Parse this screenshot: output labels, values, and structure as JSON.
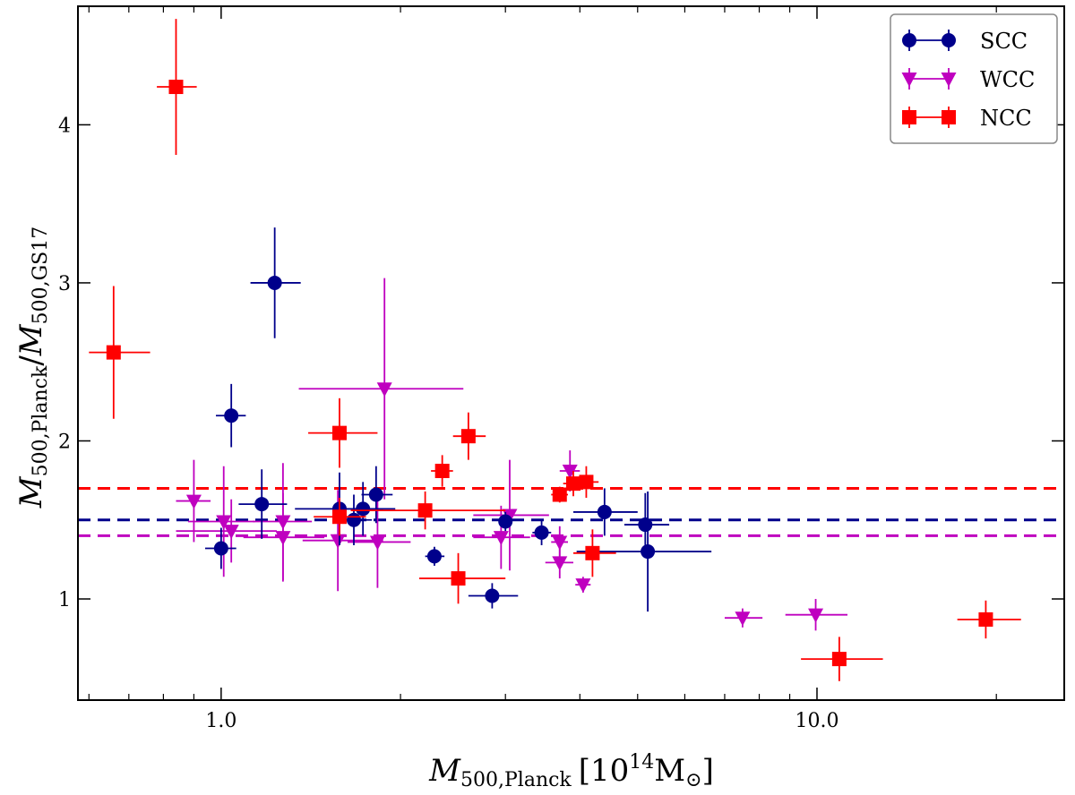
{
  "chart_data": {
    "type": "scatter",
    "xscale": "log",
    "xlim": [
      0.575,
      26
    ],
    "ylim": [
      0.36,
      4.75
    ],
    "xticks": [
      {
        "value": 1,
        "label": "1.0"
      },
      {
        "value": 10,
        "label": "10.0"
      }
    ],
    "yticks": [
      {
        "value": 1,
        "label": "1"
      },
      {
        "value": 2,
        "label": "2"
      },
      {
        "value": 3,
        "label": "3"
      },
      {
        "value": 4,
        "label": "4"
      }
    ],
    "xlabel": {
      "main": "M",
      "sub": "500,Planck",
      "unit_pre": "10",
      "unit_exp": "14",
      "unit_post": "M",
      "unit_sub": "⊙"
    },
    "ylabel": {
      "num_main": "M",
      "num_sub": "500,Planck",
      "slash": "/",
      "den_main": "M",
      "den_sub": "500,GS17"
    },
    "legend": {
      "position": "top-right"
    },
    "series": [
      {
        "name": "SCC",
        "color": "#00008b",
        "marker": "circle",
        "mean": 1.5,
        "points": [
          {
            "x": 1.0,
            "y": 1.32,
            "xerr": [
              0.06,
              0.06
            ],
            "yerr": [
              0.13,
              0.13
            ]
          },
          {
            "x": 1.04,
            "y": 2.16,
            "xerr": [
              0.06,
              0.06
            ],
            "yerr": [
              0.2,
              0.2
            ]
          },
          {
            "x": 1.17,
            "y": 1.6,
            "xerr": [
              0.1,
              0.12
            ],
            "yerr": [
              0.22,
              0.22
            ]
          },
          {
            "x": 1.23,
            "y": 3.0,
            "xerr": [
              0.11,
              0.13
            ],
            "yerr": [
              0.35,
              0.35
            ]
          },
          {
            "x": 1.58,
            "y": 1.57,
            "xerr": [
              0.25,
              0.38
            ],
            "yerr": [
              0.23,
              0.23
            ]
          },
          {
            "x": 1.67,
            "y": 1.5,
            "xerr": [
              0.1,
              0.12
            ],
            "yerr": [
              0.16,
              0.16
            ]
          },
          {
            "x": 1.73,
            "y": 1.57,
            "xerr": [
              0.12,
              0.14
            ],
            "yerr": [
              0.17,
              0.17
            ]
          },
          {
            "x": 1.82,
            "y": 1.66,
            "xerr": [
              0.1,
              0.12
            ],
            "yerr": [
              0.18,
              0.18
            ]
          },
          {
            "x": 2.28,
            "y": 1.27,
            "xerr": [
              0.08,
              0.09
            ],
            "yerr": [
              0.06,
              0.06
            ]
          },
          {
            "x": 2.85,
            "y": 1.02,
            "xerr": [
              0.25,
              0.3
            ],
            "yerr": [
              0.08,
              0.08
            ]
          },
          {
            "x": 3.0,
            "y": 1.49,
            "xerr": [
              0.07,
              0.07
            ],
            "yerr": [
              0.06,
              0.06
            ]
          },
          {
            "x": 3.45,
            "y": 1.42,
            "xerr": [
              0.12,
              0.13
            ],
            "yerr": [
              0.08,
              0.08
            ]
          },
          {
            "x": 4.4,
            "y": 1.55,
            "xerr": [
              0.5,
              0.6
            ],
            "yerr": [
              0.15,
              0.15
            ]
          },
          {
            "x": 5.15,
            "y": 1.47,
            "xerr": [
              0.4,
              0.5
            ],
            "yerr": [
              0.2,
              0.2
            ]
          },
          {
            "x": 5.2,
            "y": 1.3,
            "xerr": [
              1.25,
              1.45
            ],
            "yerr": [
              0.38,
              0.38
            ]
          }
        ]
      },
      {
        "name": "WCC",
        "color": "#bf00bf",
        "marker": "triangle-down",
        "mean": 1.4,
        "points": [
          {
            "x": 0.9,
            "y": 1.62,
            "xerr": [
              0.06,
              0.06
            ],
            "yerr": [
              0.26,
              0.26
            ]
          },
          {
            "x": 1.01,
            "y": 1.49,
            "xerr": [
              0.13,
              0.13
            ],
            "yerr": [
              0.35,
              0.35
            ]
          },
          {
            "x": 1.04,
            "y": 1.43,
            "xerr": [
              0.2,
              0.2
            ],
            "yerr": [
              0.2,
              0.2
            ]
          },
          {
            "x": 1.27,
            "y": 1.49,
            "xerr": [
              0.14,
              0.15
            ],
            "yerr": [
              0.37,
              0.37
            ]
          },
          {
            "x": 1.27,
            "y": 1.39,
            "xerr": [
              0.18,
              0.22
            ],
            "yerr": [
              0.28,
              0.28
            ]
          },
          {
            "x": 1.57,
            "y": 1.37,
            "xerr": [
              0.2,
              0.3
            ],
            "yerr": [
              0.32,
              0.32
            ]
          },
          {
            "x": 1.83,
            "y": 1.36,
            "xerr": [
              0.2,
              0.25
            ],
            "yerr": [
              0.29,
              0.29
            ]
          },
          {
            "x": 1.88,
            "y": 2.33,
            "xerr": [
              0.53,
              0.67
            ],
            "yerr": [
              0.7,
              0.7
            ]
          },
          {
            "x": 2.95,
            "y": 1.39,
            "xerr": [
              0.3,
              0.35
            ],
            "yerr": [
              0.2,
              0.2
            ]
          },
          {
            "x": 3.05,
            "y": 1.53,
            "xerr": [
              0.4,
              0.5
            ],
            "yerr": [
              0.35,
              0.35
            ]
          },
          {
            "x": 3.7,
            "y": 1.36,
            "xerr": [
              0.12,
              0.12
            ],
            "yerr": [
              0.1,
              0.1
            ]
          },
          {
            "x": 3.7,
            "y": 1.23,
            "xerr": [
              0.2,
              0.2
            ],
            "yerr": [
              0.1,
              0.1
            ]
          },
          {
            "x": 3.85,
            "y": 1.81,
            "xerr": [
              0.15,
              0.15
            ],
            "yerr": [
              0.13,
              0.13
            ]
          },
          {
            "x": 4.05,
            "y": 1.09,
            "xerr": [
              0.12,
              0.12
            ],
            "yerr": [
              0.05,
              0.05
            ]
          },
          {
            "x": 7.5,
            "y": 0.88,
            "xerr": [
              0.5,
              0.6
            ],
            "yerr": [
              0.06,
              0.06
            ]
          },
          {
            "x": 9.95,
            "y": 0.9,
            "xerr": [
              1.1,
              1.3
            ],
            "yerr": [
              0.1,
              0.1
            ]
          }
        ]
      },
      {
        "name": "NCC",
        "color": "#ff0000",
        "marker": "square",
        "mean": 1.7,
        "points": [
          {
            "x": 0.84,
            "y": 4.24,
            "xerr": [
              0.06,
              0.07
            ],
            "yerr": [
              0.43,
              0.43
            ]
          },
          {
            "x": 0.66,
            "y": 2.56,
            "xerr": [
              0.06,
              0.1
            ],
            "yerr": [
              0.42,
              0.42
            ]
          },
          {
            "x": 1.58,
            "y": 2.05,
            "xerr": [
              0.18,
              0.25
            ],
            "yerr": [
              0.22,
              0.22
            ]
          },
          {
            "x": 1.58,
            "y": 1.52,
            "xerr": [
              0.15,
              0.17
            ],
            "yerr": [
              0.12,
              0.12
            ]
          },
          {
            "x": 2.2,
            "y": 1.56,
            "xerr": [
              0.55,
              0.8
            ],
            "yerr": [
              0.12,
              0.12
            ]
          },
          {
            "x": 2.35,
            "y": 1.81,
            "xerr": [
              0.1,
              0.1
            ],
            "yerr": [
              0.1,
              0.1
            ]
          },
          {
            "x": 2.5,
            "y": 1.13,
            "xerr": [
              0.35,
              0.5
            ],
            "yerr": [
              0.16,
              0.16
            ]
          },
          {
            "x": 2.6,
            "y": 2.03,
            "xerr": [
              0.15,
              0.18
            ],
            "yerr": [
              0.15,
              0.15
            ]
          },
          {
            "x": 3.7,
            "y": 1.66,
            "xerr": [
              0.12,
              0.12
            ],
            "yerr": [
              0.05,
              0.05
            ]
          },
          {
            "x": 3.9,
            "y": 1.73,
            "xerr": [
              0.15,
              0.15
            ],
            "yerr": [
              0.08,
              0.08
            ]
          },
          {
            "x": 4.1,
            "y": 1.74,
            "xerr": [
              0.2,
              0.2
            ],
            "yerr": [
              0.1,
              0.1
            ]
          },
          {
            "x": 4.2,
            "y": 1.29,
            "xerr": [
              0.3,
              0.4
            ],
            "yerr": [
              0.15,
              0.15
            ]
          },
          {
            "x": 10.9,
            "y": 0.62,
            "xerr": [
              1.5,
              2.0
            ],
            "yerr": [
              0.14,
              0.14
            ]
          },
          {
            "x": 19.2,
            "y": 0.87,
            "xerr": [
              2.0,
              2.8
            ],
            "yerr": [
              0.12,
              0.12
            ]
          }
        ]
      }
    ]
  }
}
